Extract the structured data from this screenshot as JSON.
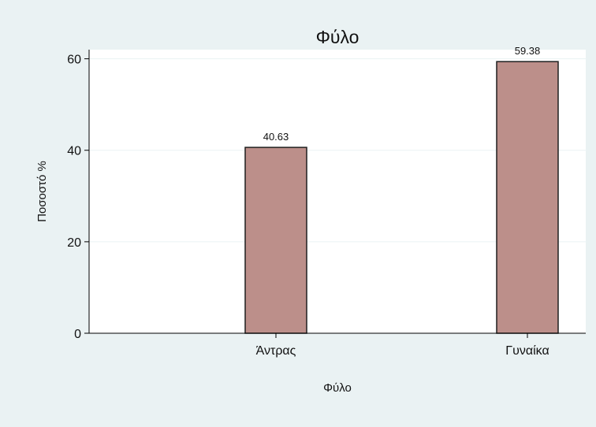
{
  "chart_data": {
    "type": "bar",
    "title": "Φύλο",
    "xlabel": "Φύλο",
    "ylabel": "Ποσοστό %",
    "categories": [
      "Άντρας",
      "Γυναίκα"
    ],
    "values": [
      40.63,
      59.38
    ],
    "data_labels": [
      "40.63",
      "59.38"
    ],
    "ylim": [
      0,
      62
    ],
    "yticks": [
      0,
      20,
      40,
      60
    ],
    "ytick_labels": [
      "0",
      "20",
      "40",
      "60"
    ],
    "grid": true,
    "legend": "none",
    "colors": {
      "bar_fill": "#bc8f8a",
      "bar_stroke": "#1f1f1f",
      "outer_background": "#eaf2f3",
      "plot_background": "#ffffff",
      "grid": "#eaf2f3",
      "axis": "#000000"
    }
  }
}
